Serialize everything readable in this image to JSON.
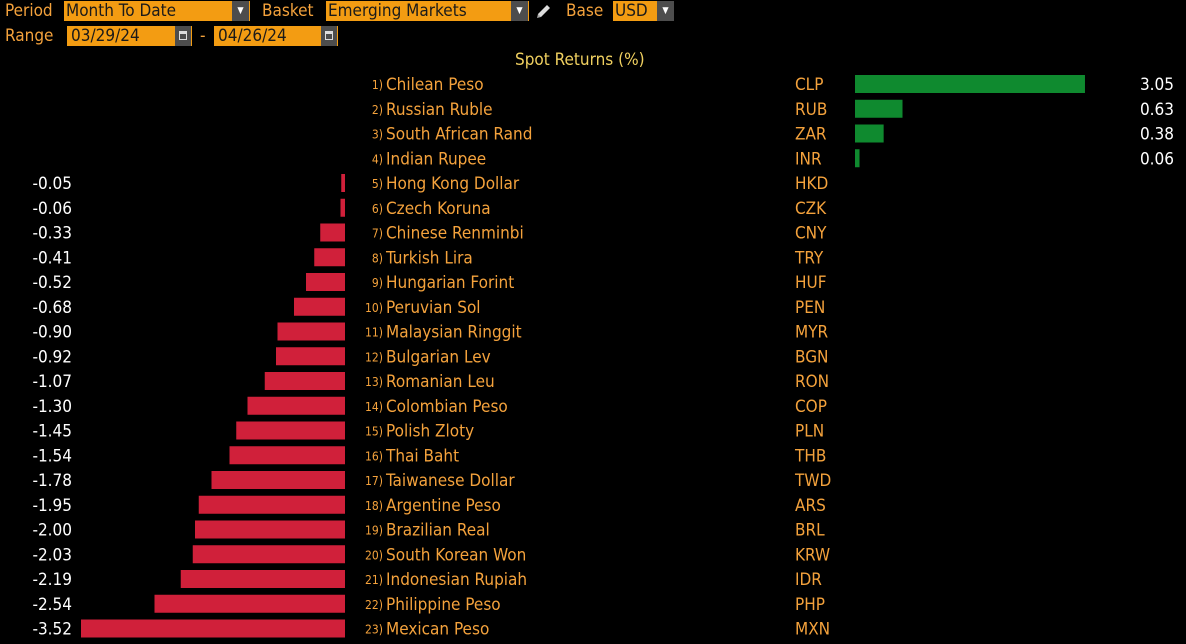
{
  "toolbar": {
    "period_label": "Period",
    "period_value": "Month To Date",
    "basket_label": "Basket",
    "basket_value": "Emerging Markets",
    "base_label": "Base",
    "base_value": "USD",
    "range_label": "Range",
    "range_start": "03/29/24",
    "range_sep": "-",
    "range_end": "04/26/24"
  },
  "icons": [
    "dropdown-arrow-icon",
    "pencil-icon",
    "calendar-icon"
  ],
  "colors": {
    "positive": "#0f8a2f",
    "negative": "#d0203a",
    "accent": "#f39c12",
    "heading": "#f0d060"
  },
  "chart_data": {
    "type": "bar",
    "title": "Spot Returns (%)",
    "orientation": "horizontal",
    "rows": [
      {
        "rank": "1)",
        "name": "Chilean Peso",
        "code": "CLP",
        "value": 3.05,
        "label": "3.05"
      },
      {
        "rank": "2)",
        "name": "Russian Ruble",
        "code": "RUB",
        "value": 0.63,
        "label": "0.63"
      },
      {
        "rank": "3)",
        "name": "South African Rand",
        "code": "ZAR",
        "value": 0.38,
        "label": "0.38"
      },
      {
        "rank": "4)",
        "name": "Indian Rupee",
        "code": "INR",
        "value": 0.06,
        "label": "0.06"
      },
      {
        "rank": "5)",
        "name": "Hong Kong Dollar",
        "code": "HKD",
        "value": -0.05,
        "label": "-0.05"
      },
      {
        "rank": "6)",
        "name": "Czech Koruna",
        "code": "CZK",
        "value": -0.06,
        "label": "-0.06"
      },
      {
        "rank": "7)",
        "name": "Chinese Renminbi",
        "code": "CNY",
        "value": -0.33,
        "label": "-0.33"
      },
      {
        "rank": "8)",
        "name": "Turkish Lira",
        "code": "TRY",
        "value": -0.41,
        "label": "-0.41"
      },
      {
        "rank": "9)",
        "name": "Hungarian Forint",
        "code": "HUF",
        "value": -0.52,
        "label": "-0.52"
      },
      {
        "rank": "10)",
        "name": "Peruvian Sol",
        "code": "PEN",
        "value": -0.68,
        "label": "-0.68"
      },
      {
        "rank": "11)",
        "name": "Malaysian Ringgit",
        "code": "MYR",
        "value": -0.9,
        "label": "-0.90"
      },
      {
        "rank": "12)",
        "name": "Bulgarian Lev",
        "code": "BGN",
        "value": -0.92,
        "label": "-0.92"
      },
      {
        "rank": "13)",
        "name": "Romanian Leu",
        "code": "RON",
        "value": -1.07,
        "label": "-1.07"
      },
      {
        "rank": "14)",
        "name": "Colombian Peso",
        "code": "COP",
        "value": -1.3,
        "label": "-1.30"
      },
      {
        "rank": "15)",
        "name": "Polish Zloty",
        "code": "PLN",
        "value": -1.45,
        "label": "-1.45"
      },
      {
        "rank": "16)",
        "name": "Thai Baht",
        "code": "THB",
        "value": -1.54,
        "label": "-1.54"
      },
      {
        "rank": "17)",
        "name": "Taiwanese Dollar",
        "code": "TWD",
        "value": -1.78,
        "label": "-1.78"
      },
      {
        "rank": "18)",
        "name": "Argentine Peso",
        "code": "ARS",
        "value": -1.95,
        "label": "-1.95"
      },
      {
        "rank": "19)",
        "name": "Brazilian Real",
        "code": "BRL",
        "value": -2.0,
        "label": "-2.00"
      },
      {
        "rank": "20)",
        "name": "South Korean Won",
        "code": "KRW",
        "value": -2.03,
        "label": "-2.03"
      },
      {
        "rank": "21)",
        "name": "Indonesian Rupiah",
        "code": "IDR",
        "value": -2.19,
        "label": "-2.19"
      },
      {
        "rank": "22)",
        "name": "Philippine Peso",
        "code": "PHP",
        "value": -2.54,
        "label": "-2.54"
      },
      {
        "rank": "23)",
        "name": "Mexican Peso",
        "code": "MXN",
        "value": -3.52,
        "label": "-3.52"
      }
    ]
  }
}
